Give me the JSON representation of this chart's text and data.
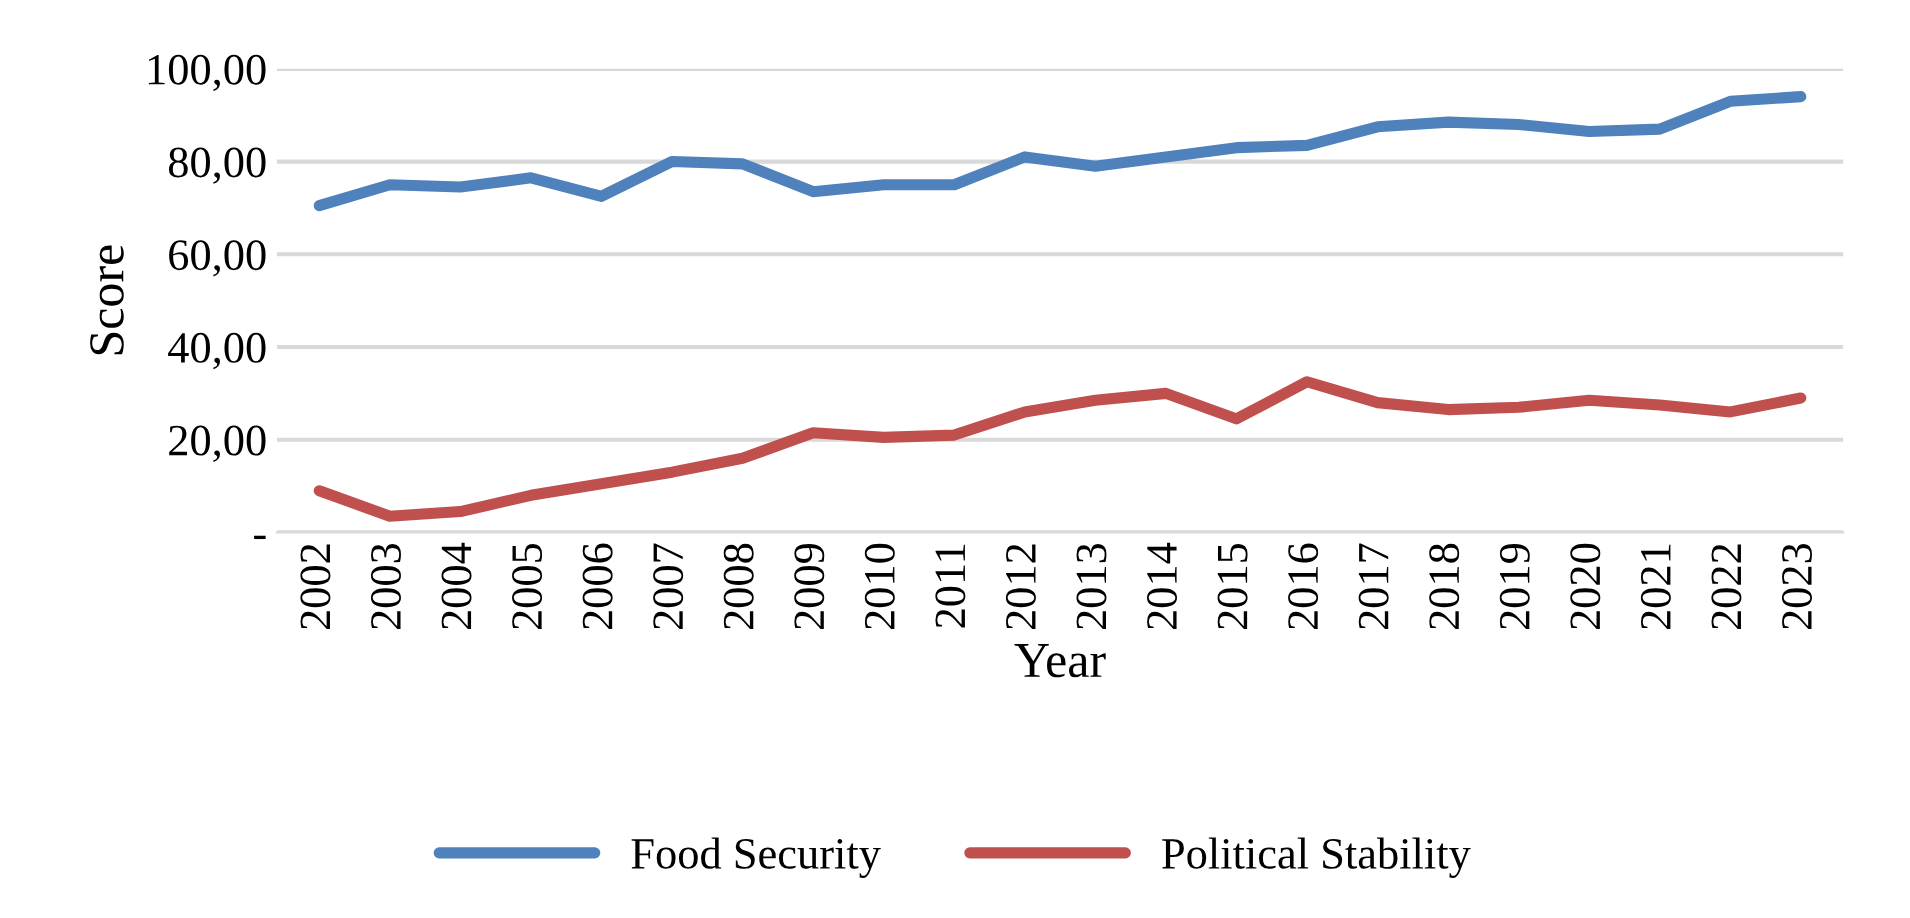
{
  "chart_data": {
    "type": "line",
    "xlabel": "Year",
    "ylabel": "Score",
    "categories": [
      "2002",
      "2003",
      "2004",
      "2005",
      "2006",
      "2007",
      "2008",
      "2009",
      "2010",
      "2011",
      "2012",
      "2013",
      "2014",
      "2015",
      "2016",
      "2017",
      "2018",
      "2019",
      "2020",
      "2021",
      "2022",
      "2023"
    ],
    "series": [
      {
        "name": "Food Security",
        "color": "#4f81bd",
        "values": [
          70.5,
          75,
          74.5,
          76.5,
          72.5,
          80,
          79.5,
          73.5,
          75,
          75,
          81,
          79,
          81,
          83,
          83.5,
          87.5,
          88.5,
          88,
          86.5,
          87,
          93,
          94
        ]
      },
      {
        "name": "Political Stability",
        "color": "#c0504d",
        "values": [
          9,
          3.5,
          4.5,
          8,
          10.5,
          13,
          16,
          21.5,
          20.5,
          21,
          26,
          28.5,
          30,
          24.5,
          32.5,
          28,
          26.5,
          27,
          28.5,
          27.5,
          26,
          29
        ]
      }
    ],
    "ylim": [
      0,
      100
    ],
    "yticks": [
      {
        "value": 0,
        "label": "-"
      },
      {
        "value": 20,
        "label": "20,00"
      },
      {
        "value": 40,
        "label": "40,00"
      },
      {
        "value": 60,
        "label": "60,00"
      },
      {
        "value": 80,
        "label": "80,00"
      },
      {
        "value": 100,
        "label": "100,00"
      }
    ],
    "grid": "y",
    "legend": "bottom",
    "marker": "none",
    "line_style": "solid"
  }
}
